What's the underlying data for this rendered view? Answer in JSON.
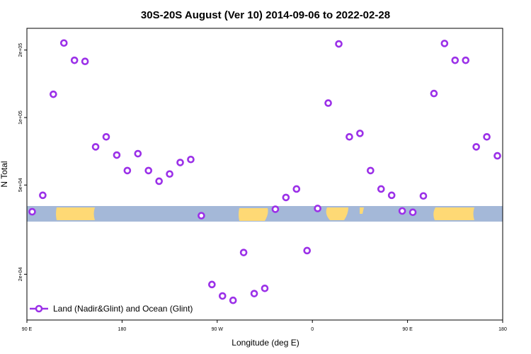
{
  "chart_data": {
    "type": "scatter",
    "title": "30S-20S August (Ver 10)   2014-09-06 to 2022-02-28",
    "xlabel": "Longitude (deg E)",
    "ylabel": "N Total",
    "x_scale": "linear",
    "y_scale": "log",
    "xlim": [
      90,
      540
    ],
    "ylim": [
      12500,
      250000
    ],
    "x_ticks": [
      {
        "value": 90,
        "label": "90 E"
      },
      {
        "value": 180,
        "label": "180"
      },
      {
        "value": 270,
        "label": "90 W"
      },
      {
        "value": 360,
        "label": "0"
      },
      {
        "value": 450,
        "label": "90 E"
      },
      {
        "value": 540,
        "label": "180"
      }
    ],
    "y_ticks": [
      {
        "value": 20000,
        "label": "2e+04"
      },
      {
        "value": 50000,
        "label": "5e+04"
      },
      {
        "value": 100000,
        "label": "1e+05"
      },
      {
        "value": 200000,
        "label": "2e+05"
      }
    ],
    "legend": {
      "position": "bottom-left",
      "label": "Land (Nadir&Glint) and Ocean (Glint)"
    },
    "series": [
      {
        "name": "Land (Nadir&Glint) and Ocean (Glint)",
        "color": "#9b30e8",
        "x": [
          95,
          105,
          115,
          125,
          135,
          145,
          155,
          165,
          175,
          185,
          195,
          205,
          215,
          225,
          235,
          245,
          255,
          265,
          275,
          285,
          295,
          305,
          315,
          325,
          335,
          345,
          355,
          365,
          375,
          385,
          395,
          405,
          415,
          425,
          435,
          445,
          455,
          465,
          475,
          485,
          495,
          505,
          515,
          525,
          535
        ],
        "y": [
          38000,
          45000,
          127000,
          215000,
          180000,
          178000,
          74000,
          82000,
          68000,
          58000,
          69000,
          58000,
          52000,
          56000,
          63000,
          65000,
          36500,
          18000,
          16000,
          15300,
          25000,
          16400,
          17300,
          39000,
          44000,
          48000,
          25500,
          39300,
          116000,
          213000,
          82000,
          85000,
          58000,
          48000,
          45000,
          38300,
          37800,
          44700,
          128000,
          214000,
          180000,
          180000,
          74000,
          82000,
          67500
        ]
      }
    ],
    "colors": {
      "ocean": "#a4b8d8",
      "land": "#fed975",
      "marker": "#9b30e8"
    }
  }
}
